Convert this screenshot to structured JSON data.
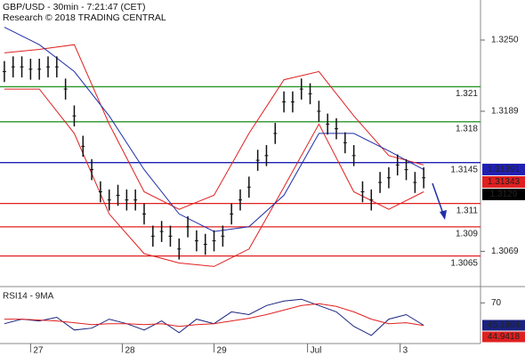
{
  "chart_data": [
    {
      "type": "range-bar",
      "title": "GBP/USD - 30min - 7:21:47 (CET)",
      "subtitle": "Research © 2018 TRADING CENTRAL",
      "color": "#111111",
      "x": [
        0,
        1,
        2,
        3,
        4,
        5,
        6,
        7,
        8,
        9,
        10,
        11,
        12,
        13,
        14,
        15,
        16,
        17,
        18,
        19,
        20,
        21,
        22,
        23,
        24,
        25,
        26,
        27,
        28,
        29,
        30,
        31,
        32,
        33,
        34,
        35,
        36,
        37,
        38,
        39,
        40,
        41,
        42,
        43,
        44,
        45,
        46,
        47,
        48
      ],
      "high": [
        1.3232,
        1.3236,
        1.3236,
        1.3234,
        1.3234,
        1.3236,
        1.3236,
        1.3217,
        1.3194,
        1.3168,
        1.3148,
        1.3129,
        1.3122,
        1.3126,
        1.3122,
        1.3122,
        1.311,
        1.3091,
        1.3095,
        1.3091,
        1.308,
        1.3099,
        1.3087,
        1.3084,
        1.3087,
        1.3091,
        1.311,
        1.3122,
        1.3133,
        1.3156,
        1.316,
        1.3179,
        1.3206,
        1.3206,
        1.3217,
        1.3213,
        1.3198,
        1.3187,
        1.3183,
        1.3171,
        1.316,
        1.3129,
        1.3122,
        1.3137,
        1.3141,
        1.3152,
        1.3148,
        1.3137,
        1.3141
      ],
      "low": [
        1.3214,
        1.3218,
        1.3218,
        1.3216,
        1.3216,
        1.3218,
        1.3218,
        1.3199,
        1.3176,
        1.315,
        1.313,
        1.3111,
        1.3104,
        1.3108,
        1.3104,
        1.3104,
        1.3092,
        1.3073,
        1.3077,
        1.3073,
        1.3062,
        1.3081,
        1.3069,
        1.3066,
        1.3069,
        1.3073,
        1.3092,
        1.3104,
        1.3115,
        1.3138,
        1.3142,
        1.3161,
        1.3188,
        1.3188,
        1.3199,
        1.3195,
        1.318,
        1.3169,
        1.3165,
        1.3153,
        1.3142,
        1.3111,
        1.3104,
        1.3119,
        1.3123,
        1.3134,
        1.313,
        1.3119,
        1.3123
      ],
      "lines": [
        {
          "color": "#e02020",
          "x": [
            0,
            4,
            8,
            12,
            16,
            20,
            24,
            28,
            32,
            36,
            40,
            44,
            48
          ],
          "values": [
            1.3239,
            1.3242,
            1.3246,
            1.3178,
            1.312,
            1.3105,
            1.3117,
            1.317,
            1.3216,
            1.3223,
            1.3185,
            1.3151,
            1.3143
          ]
        },
        {
          "color": "#e02020",
          "x": [
            0,
            4,
            8,
            12,
            16,
            20,
            24,
            28,
            32,
            36,
            40,
            44,
            48
          ],
          "values": [
            1.3208,
            1.3208,
            1.317,
            1.3101,
            1.3067,
            1.3059,
            1.3056,
            1.3071,
            1.3124,
            1.3178,
            1.312,
            1.3105,
            1.312
          ]
        },
        {
          "color": "#1f2fa8",
          "x": [
            0,
            4,
            8,
            12,
            16,
            20,
            24,
            28,
            32,
            36,
            40,
            44,
            48
          ],
          "values": [
            1.3261,
            1.3246,
            1.3223,
            1.3185,
            1.3139,
            1.3101,
            1.3086,
            1.309,
            1.3117,
            1.317,
            1.317,
            1.3155,
            1.3139
          ]
        }
      ],
      "levels": [
        {
          "value": 1.321,
          "color": "#2a962a"
        },
        {
          "value": 1.318,
          "color": "#2a962a"
        },
        {
          "value": 1.3145,
          "color": "#1f1fb4"
        },
        {
          "value": 1.311,
          "color": "#e02020"
        },
        {
          "value": 1.309,
          "color": "#e02020"
        },
        {
          "value": 1.3065,
          "color": "#e02020"
        }
      ],
      "markers": [
        {
          "value": 1.31391,
          "color": "#1f1fb4"
        },
        {
          "value": 1.31343,
          "color": "#e02020"
        },
        {
          "value": 1.3129,
          "color": "#000000"
        }
      ],
      "xlim": [
        -0.5,
        54.5
      ],
      "ylim": [
        1.30388,
        1.32843
      ],
      "yticks": [
        {
          "value": 1.325,
          "label": "1.3250"
        },
        1.3189,
        1.3069
      ]
    },
    {
      "type": "line",
      "title": "RSI14 - 9MA",
      "x": [
        0,
        2,
        4,
        6,
        8,
        10,
        12,
        14,
        16,
        18,
        20,
        22,
        24,
        26,
        28,
        30,
        32,
        34,
        36,
        38,
        40,
        42,
        44,
        46,
        48
      ],
      "series": [
        {
          "color": "#1a237e",
          "values": [
            47,
            52,
            50,
            54,
            40,
            42,
            52,
            47,
            40,
            50,
            37,
            52,
            47,
            60,
            57,
            67,
            72,
            74,
            67,
            60,
            44,
            34,
            52,
            57,
            45.1904
          ]
        },
        {
          "color": "#e02020",
          "values": [
            52,
            52,
            51,
            50,
            48,
            46,
            47,
            47,
            46,
            47,
            44,
            46,
            47,
            50,
            53,
            57,
            62,
            67,
            69,
            66,
            60,
            52,
            47,
            48,
            44.9418
          ]
        }
      ],
      "xlim": [
        -0.5,
        54.5
      ],
      "ylim": [
        25,
        88
      ],
      "yticks": [
        70
      ],
      "xticks": [
        {
          "value": 3,
          "label": "27"
        },
        {
          "value": 13.5,
          "label": "28"
        },
        {
          "value": 24,
          "label": "29"
        },
        {
          "value": 34.7,
          "label": "Jul"
        },
        {
          "value": 45.3,
          "label": "3"
        }
      ]
    }
  ]
}
